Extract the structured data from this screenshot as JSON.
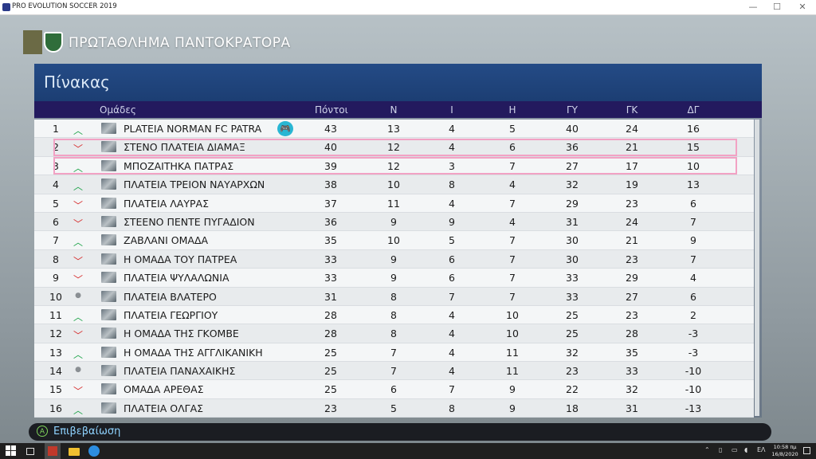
{
  "window": {
    "title": "PRO EVOLUTION SOCCER 2019",
    "minimize": "—",
    "maximize": "☐",
    "close": "✕"
  },
  "header": {
    "league_title": "ΠΡΩΤΑΘΛΗΜΑ ΠΑΝΤΟΚΡΑΤΟΡΑ"
  },
  "panel": {
    "title": "Πίνακας"
  },
  "columns": {
    "team": "Ομάδες",
    "points": "Πόντοι",
    "n": "Ν",
    "i": "Ι",
    "h": "Η",
    "gy": "ΓΥ",
    "gk": "ΓΚ",
    "dg": "ΔΓ"
  },
  "standings": [
    {
      "pos": "1",
      "trend": "up",
      "name": "PLATEIA NORMAN FC PATRA",
      "pts": "43",
      "n": "13",
      "i": "4",
      "h": "5",
      "gy": "40",
      "gk": "24",
      "dg": "16",
      "user": true
    },
    {
      "pos": "2",
      "trend": "down",
      "name": "ΣΤΕΝΟ ΠΛΑΤΕΙΑ ΔΙΑΜΑΞ",
      "pts": "40",
      "n": "12",
      "i": "4",
      "h": "6",
      "gy": "36",
      "gk": "21",
      "dg": "15"
    },
    {
      "pos": "3",
      "trend": "up",
      "name": "ΜΠΟΖΑΙΤΗΚΑ ΠΑΤΡΑΣ",
      "pts": "39",
      "n": "12",
      "i": "3",
      "h": "7",
      "gy": "27",
      "gk": "17",
      "dg": "10"
    },
    {
      "pos": "4",
      "trend": "up",
      "name": "ΠΛΑΤΕΙΑ ΤΡΕΙΟΝ ΝΑΥΑΡΧΩΝ",
      "pts": "38",
      "n": "10",
      "i": "8",
      "h": "4",
      "gy": "32",
      "gk": "19",
      "dg": "13"
    },
    {
      "pos": "5",
      "trend": "down",
      "name": "ΠΛΑΤΕΙΑ ΛΑΥΡΑΣ",
      "pts": "37",
      "n": "11",
      "i": "4",
      "h": "7",
      "gy": "29",
      "gk": "23",
      "dg": "6"
    },
    {
      "pos": "6",
      "trend": "down",
      "name": " ΣΤΕΕΝΟ ΠΕΝΤΕ ΠΥΓΑΔΙΟΝ",
      "pts": "36",
      "n": "9",
      "i": "9",
      "h": "4",
      "gy": "31",
      "gk": "24",
      "dg": "7"
    },
    {
      "pos": "7",
      "trend": "up",
      "name": "ΖΑΒΛΑΝΙ ΟΜΑΔΑ",
      "pts": "35",
      "n": "10",
      "i": "5",
      "h": "7",
      "gy": "30",
      "gk": "21",
      "dg": "9"
    },
    {
      "pos": "8",
      "trend": "down",
      "name": "Η ΟΜΑΔΑ ΤΟΥ ΠΑΤΡΕΑ",
      "pts": "33",
      "n": "9",
      "i": "6",
      "h": "7",
      "gy": "30",
      "gk": "23",
      "dg": "7"
    },
    {
      "pos": "9",
      "trend": "down",
      "name": "ΠΛΑΤΕΙΑ ΨΥΛΑΛΩΝΙΑ",
      "pts": "33",
      "n": "9",
      "i": "6",
      "h": "7",
      "gy": "33",
      "gk": "29",
      "dg": "4"
    },
    {
      "pos": "10",
      "trend": "same",
      "name": "ΠΛΑΤΕΙΑ ΒΛΑΤΕΡΟ",
      "pts": "31",
      "n": "8",
      "i": "7",
      "h": "7",
      "gy": "33",
      "gk": "27",
      "dg": "6"
    },
    {
      "pos": "11",
      "trend": "up",
      "name": "ΠΛΑΤΕΙΑ ΓΕΩΡΓΙΟΥ",
      "pts": "28",
      "n": "8",
      "i": "4",
      "h": "10",
      "gy": "25",
      "gk": "23",
      "dg": "2"
    },
    {
      "pos": "12",
      "trend": "down",
      "name": "Η ΟΜΑΔΑ ΤΗΣ ΓΚΟΜΒΕ",
      "pts": "28",
      "n": "8",
      "i": "4",
      "h": "10",
      "gy": "25",
      "gk": "28",
      "dg": "-3"
    },
    {
      "pos": "13",
      "trend": "up",
      "name": "Η ΟΜΑΔΑ ΤΗΣ ΑΓΓΛΙΚΑΝΙΚΗ",
      "pts": "25",
      "n": "7",
      "i": "4",
      "h": "11",
      "gy": "32",
      "gk": "35",
      "dg": "-3"
    },
    {
      "pos": "14",
      "trend": "same",
      "name": "ΠΛΑΤΕΙΑ ΠΑΝΑΧΑΙΚΗΣ",
      "pts": "25",
      "n": "7",
      "i": "4",
      "h": "11",
      "gy": "23",
      "gk": "33",
      "dg": "-10"
    },
    {
      "pos": "15",
      "trend": "down",
      "name": "ΟΜΑΔΑ ΑΡΕΘΑΣ",
      "pts": "25",
      "n": "6",
      "i": "7",
      "h": "9",
      "gy": "22",
      "gk": "32",
      "dg": "-10"
    },
    {
      "pos": "16",
      "trend": "up",
      "name": "ΠΛΑΤΕΙΑ ΟΛΓΑΣ",
      "pts": "23",
      "n": "5",
      "i": "8",
      "h": "9",
      "gy": "18",
      "gk": "31",
      "dg": "-13"
    }
  ],
  "highlighted_positions": [
    "2",
    "3"
  ],
  "footer": {
    "a_button": "A",
    "confirm_label": "Επιβεβαίωση"
  },
  "taskbar": {
    "language": "ΕΛ",
    "time": "10:58 πμ",
    "date": "16/8/2020"
  },
  "colors": {
    "trend_up": "#1fa34a",
    "trend_down": "#d62b2b",
    "highlight": "#f2a2c4",
    "header_blue": "#244b86",
    "column_header": "#231a5e"
  }
}
